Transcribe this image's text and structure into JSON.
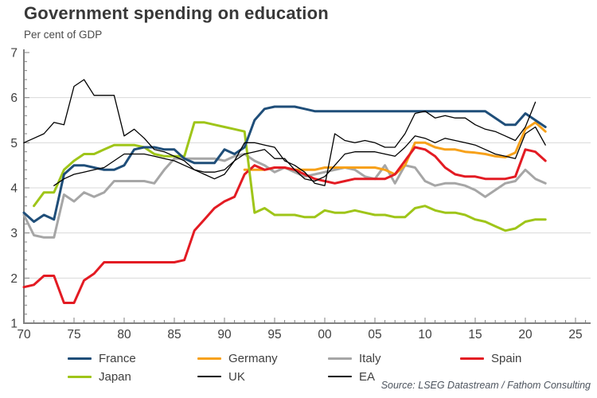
{
  "chart_data": {
    "type": "line",
    "title": "Government spending on education",
    "subtitle": "Per cent of GDP",
    "source": "Source: LSEG Datastream / Fathom Consulting",
    "grid": "horizontal-only",
    "legend_position": "bottom",
    "x": {
      "min": 1970,
      "max": 2025,
      "major_tick_step": 5,
      "minor_tick_step": 1,
      "tick_labels": [
        "70",
        "75",
        "80",
        "85",
        "90",
        "95",
        "00",
        "05",
        "10",
        "15",
        "20",
        "25"
      ]
    },
    "y": {
      "min": 1,
      "max": 7,
      "major_tick_step": 1,
      "minor_tick_step": 0.2,
      "gridlines": [
        2,
        3,
        4,
        5,
        6
      ],
      "tick_labels": [
        "1",
        "2",
        "3",
        "4",
        "5",
        "6",
        "7"
      ]
    },
    "years": [
      1970,
      1971,
      1972,
      1973,
      1974,
      1975,
      1976,
      1977,
      1978,
      1979,
      1980,
      1981,
      1982,
      1983,
      1984,
      1985,
      1986,
      1987,
      1988,
      1989,
      1990,
      1991,
      1992,
      1993,
      1994,
      1995,
      1996,
      1997,
      1998,
      1999,
      2000,
      2001,
      2002,
      2003,
      2004,
      2005,
      2006,
      2007,
      2008,
      2009,
      2010,
      2011,
      2012,
      2013,
      2014,
      2015,
      2016,
      2017,
      2018,
      2019,
      2020,
      2021,
      2022
    ],
    "series": [
      {
        "name": "France",
        "color": "#1f4e79",
        "width": 3,
        "values": [
          3.45,
          3.25,
          3.4,
          3.3,
          4.3,
          4.5,
          4.5,
          4.45,
          4.4,
          4.4,
          4.5,
          4.85,
          4.9,
          4.9,
          4.85,
          4.85,
          4.65,
          4.55,
          4.55,
          4.55,
          4.85,
          4.75,
          4.9,
          5.5,
          5.75,
          5.8,
          5.8,
          5.8,
          5.75,
          5.7,
          5.7,
          5.7,
          5.7,
          5.7,
          5.7,
          5.7,
          5.7,
          5.7,
          5.7,
          5.7,
          5.7,
          5.7,
          5.7,
          5.7,
          5.7,
          5.7,
          5.7,
          5.55,
          5.4,
          5.4,
          5.65,
          5.5,
          5.35
        ]
      },
      {
        "name": "Germany",
        "color": "#f7a11a",
        "width": 3,
        "values": [
          null,
          null,
          null,
          null,
          null,
          null,
          null,
          null,
          null,
          null,
          null,
          null,
          null,
          null,
          null,
          null,
          null,
          null,
          null,
          null,
          null,
          null,
          4.4,
          4.4,
          4.4,
          4.45,
          4.45,
          4.4,
          4.4,
          4.4,
          4.45,
          4.45,
          4.45,
          4.45,
          4.45,
          4.45,
          4.4,
          4.3,
          4.5,
          5.0,
          5.0,
          4.9,
          4.85,
          4.85,
          4.8,
          4.78,
          4.75,
          4.7,
          4.68,
          4.78,
          5.3,
          5.45,
          5.25
        ]
      },
      {
        "name": "Italy",
        "color": "#a6a6a6",
        "width": 3,
        "values": [
          3.4,
          2.95,
          2.9,
          2.9,
          3.85,
          3.7,
          3.9,
          3.8,
          3.9,
          4.15,
          4.15,
          4.15,
          4.15,
          4.1,
          4.4,
          4.65,
          4.65,
          4.65,
          4.65,
          4.65,
          4.6,
          4.7,
          4.75,
          4.6,
          4.5,
          4.35,
          4.45,
          4.35,
          4.25,
          4.3,
          4.35,
          4.4,
          4.45,
          4.4,
          4.25,
          4.2,
          4.5,
          4.1,
          4.5,
          4.45,
          4.15,
          4.05,
          4.1,
          4.1,
          4.05,
          3.95,
          3.8,
          3.95,
          4.1,
          4.15,
          4.4,
          4.2,
          4.1
        ]
      },
      {
        "name": "Spain",
        "color": "#e31b23",
        "width": 3,
        "values": [
          1.8,
          1.85,
          2.05,
          2.05,
          1.45,
          1.45,
          1.95,
          2.1,
          2.35,
          2.35,
          2.35,
          2.35,
          2.35,
          2.35,
          2.35,
          2.35,
          2.4,
          3.05,
          3.3,
          3.55,
          3.7,
          3.8,
          4.3,
          4.5,
          4.4,
          4.45,
          4.45,
          4.4,
          4.3,
          4.2,
          4.15,
          4.1,
          4.15,
          4.2,
          4.2,
          4.2,
          4.2,
          4.3,
          4.6,
          4.9,
          4.85,
          4.7,
          4.45,
          4.3,
          4.25,
          4.25,
          4.2,
          4.2,
          4.2,
          4.25,
          4.85,
          4.8,
          4.6
        ]
      },
      {
        "name": "Japan",
        "color": "#9fc519",
        "width": 3,
        "values": [
          null,
          3.6,
          3.9,
          3.9,
          4.4,
          4.6,
          4.75,
          4.75,
          4.85,
          4.95,
          4.95,
          4.95,
          4.9,
          4.75,
          4.7,
          4.7,
          4.7,
          5.45,
          5.45,
          5.4,
          5.35,
          5.3,
          5.25,
          3.45,
          3.55,
          3.4,
          3.4,
          3.4,
          3.35,
          3.35,
          3.5,
          3.45,
          3.45,
          3.5,
          3.45,
          3.4,
          3.4,
          3.35,
          3.35,
          3.55,
          3.6,
          3.5,
          3.45,
          3.45,
          3.4,
          3.3,
          3.25,
          3.15,
          3.05,
          3.1,
          3.25,
          3.3,
          3.3
        ]
      },
      {
        "name": "UK",
        "color": "#000000",
        "width": 1.3,
        "values": [
          5.0,
          5.1,
          5.2,
          5.45,
          5.4,
          6.25,
          6.4,
          6.05,
          6.05,
          6.05,
          5.15,
          5.3,
          5.1,
          4.85,
          4.8,
          4.7,
          4.6,
          4.4,
          4.3,
          4.2,
          4.3,
          4.6,
          5.0,
          5.0,
          4.95,
          4.9,
          4.6,
          4.5,
          4.35,
          4.1,
          4.05,
          5.2,
          5.05,
          5.0,
          5.05,
          5.0,
          4.9,
          4.9,
          5.2,
          5.65,
          5.7,
          5.55,
          5.6,
          5.55,
          5.55,
          5.4,
          5.3,
          5.25,
          5.15,
          5.05,
          5.35,
          5.9,
          null
        ]
      },
      {
        "name": "EA",
        "color": "#000000",
        "width": 1.3,
        "values": [
          null,
          null,
          null,
          4.05,
          4.2,
          4.3,
          4.35,
          4.4,
          4.45,
          4.6,
          4.75,
          4.75,
          4.75,
          4.7,
          4.65,
          4.6,
          4.5,
          4.4,
          4.35,
          4.35,
          4.4,
          4.6,
          4.75,
          4.8,
          4.85,
          4.65,
          4.65,
          4.4,
          4.2,
          4.15,
          4.25,
          4.5,
          4.75,
          4.8,
          4.8,
          4.8,
          4.75,
          4.7,
          4.9,
          5.15,
          5.1,
          5.0,
          5.1,
          5.05,
          5.0,
          4.95,
          4.85,
          4.75,
          4.7,
          4.65,
          5.2,
          5.35,
          4.95
        ]
      }
    ]
  }
}
